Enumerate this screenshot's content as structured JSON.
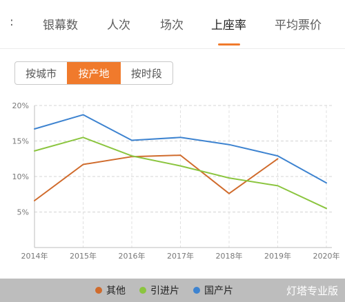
{
  "tabs": {
    "items": [
      {
        "label": ":",
        "active": false
      },
      {
        "label": "银幕数",
        "active": false
      },
      {
        "label": "人次",
        "active": false
      },
      {
        "label": "场次",
        "active": false
      },
      {
        "label": "上座率",
        "active": true
      },
      {
        "label": "平均票价",
        "active": false
      }
    ],
    "accent_color": "#f07a2c"
  },
  "filters": {
    "items": [
      {
        "label": "按城市",
        "active": false
      },
      {
        "label": "按产地",
        "active": true
      },
      {
        "label": "按时段",
        "active": false
      }
    ]
  },
  "chart_data": {
    "type": "line",
    "categories": [
      "2014年",
      "2015年",
      "2016年",
      "2017年",
      "2018年",
      "2019年",
      "2020年"
    ],
    "y_ticks": [
      "5%",
      "10%",
      "15%",
      "20%"
    ],
    "ylim": [
      0,
      20
    ],
    "y_unit": "%",
    "grid": true,
    "legend_position": "bottom",
    "series": [
      {
        "name": "其他",
        "color": "#d06b2c",
        "values": [
          6.6,
          11.7,
          12.8,
          13.0,
          7.6,
          12.5,
          null
        ]
      },
      {
        "name": "引进片",
        "color": "#8bc53f",
        "values": [
          13.6,
          15.5,
          12.9,
          11.5,
          9.8,
          8.7,
          5.5
        ]
      },
      {
        "name": "国产片",
        "color": "#3d83d0",
        "values": [
          16.7,
          18.7,
          15.1,
          15.5,
          14.5,
          12.9,
          9.1
        ]
      }
    ]
  },
  "watermark": "灯塔专业版"
}
